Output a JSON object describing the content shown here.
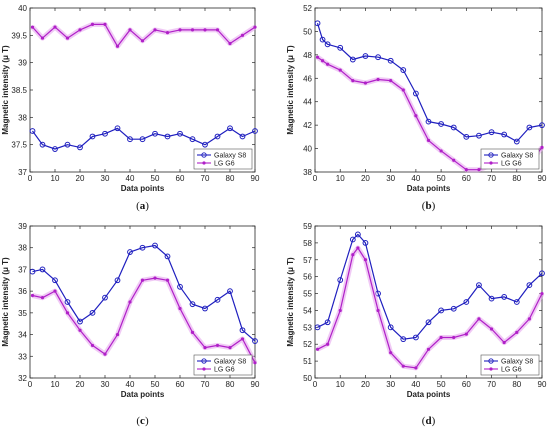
{
  "chart_data": [
    {
      "type": "line",
      "panel_label": "a",
      "xlabel": "Data points",
      "ylabel": "Magnetic intensity (μ T)",
      "xlim": [
        0,
        90
      ],
      "ylim": [
        37,
        40
      ],
      "xticks": [
        0,
        10,
        20,
        30,
        40,
        50,
        60,
        70,
        80,
        90
      ],
      "yticks": [
        37,
        37.5,
        38,
        38.5,
        39,
        39.5,
        40
      ],
      "ytick_labels": [
        "37",
        "37.5",
        "38",
        "38.5",
        "39",
        "39.5",
        "40"
      ],
      "legend": "bottom-right",
      "series": [
        {
          "name": "Galaxy S8",
          "color": "#1f1fbf",
          "marker": "circle",
          "x": [
            1,
            5,
            10,
            15,
            20,
            25,
            30,
            35,
            40,
            45,
            50,
            55,
            60,
            65,
            70,
            75,
            80,
            85,
            90
          ],
          "y": [
            37.75,
            37.5,
            37.42,
            37.5,
            37.45,
            37.65,
            37.7,
            37.8,
            37.6,
            37.6,
            37.7,
            37.65,
            37.7,
            37.6,
            37.5,
            37.65,
            37.8,
            37.65,
            37.75
          ]
        },
        {
          "name": "LG G6",
          "color": "#b020c8",
          "marker": "star",
          "x": [
            1,
            5,
            10,
            15,
            20,
            25,
            30,
            35,
            40,
            45,
            50,
            55,
            60,
            65,
            70,
            75,
            80,
            85,
            90
          ],
          "y": [
            39.65,
            39.45,
            39.65,
            39.45,
            39.6,
            39.7,
            39.7,
            39.3,
            39.6,
            39.4,
            39.6,
            39.55,
            39.6,
            39.6,
            39.6,
            39.6,
            39.35,
            39.5,
            39.65
          ]
        }
      ]
    },
    {
      "type": "line",
      "panel_label": "b",
      "xlabel": "Data points",
      "ylabel": "Magnetic intensity (μ T)",
      "xlim": [
        0,
        90
      ],
      "ylim": [
        38,
        52
      ],
      "xticks": [
        0,
        10,
        20,
        30,
        40,
        50,
        60,
        70,
        80,
        90
      ],
      "yticks": [
        38,
        40,
        42,
        44,
        46,
        48,
        50,
        52
      ],
      "ytick_labels": [
        "38",
        "40",
        "42",
        "44",
        "46",
        "48",
        "50",
        "52"
      ],
      "legend": "bottom-right",
      "series": [
        {
          "name": "Galaxy S8",
          "color": "#1f1fbf",
          "marker": "circle",
          "x": [
            1,
            3,
            5,
            10,
            15,
            20,
            25,
            30,
            35,
            40,
            45,
            50,
            55,
            60,
            65,
            70,
            75,
            80,
            85,
            90
          ],
          "y": [
            50.7,
            49.3,
            48.9,
            48.6,
            47.6,
            47.9,
            47.8,
            47.5,
            46.7,
            44.7,
            42.3,
            42.1,
            41.8,
            41.0,
            41.1,
            41.4,
            41.2,
            40.6,
            41.8,
            42.0
          ]
        },
        {
          "name": "LG G6",
          "color": "#b020c8",
          "marker": "star",
          "x": [
            1,
            3,
            5,
            10,
            15,
            20,
            25,
            30,
            35,
            40,
            45,
            50,
            55,
            60,
            65,
            70,
            75,
            80,
            85,
            90
          ],
          "y": [
            47.8,
            47.5,
            47.2,
            46.7,
            45.8,
            45.6,
            45.9,
            45.8,
            45.0,
            42.8,
            40.7,
            39.8,
            39.0,
            38.2,
            38.2,
            38.6,
            38.5,
            38.4,
            38.7,
            40.1
          ]
        }
      ]
    },
    {
      "type": "line",
      "panel_label": "c",
      "xlabel": "Data points",
      "ylabel": "Magnetic intensity (μ T)",
      "xlim": [
        0,
        90
      ],
      "ylim": [
        32,
        39
      ],
      "xticks": [
        0,
        10,
        20,
        30,
        40,
        50,
        60,
        70,
        80,
        90
      ],
      "yticks": [
        32,
        33,
        34,
        35,
        36,
        37,
        38,
        39
      ],
      "ytick_labels": [
        "32",
        "33",
        "34",
        "35",
        "36",
        "37",
        "38",
        "39"
      ],
      "legend": "bottom-right",
      "series": [
        {
          "name": "Galaxy S8",
          "color": "#1f1fbf",
          "marker": "circle",
          "x": [
            1,
            5,
            10,
            15,
            20,
            25,
            30,
            35,
            40,
            45,
            50,
            55,
            60,
            65,
            70,
            75,
            80,
            85,
            90
          ],
          "y": [
            36.9,
            37.0,
            36.5,
            35.5,
            34.6,
            35.0,
            35.7,
            36.5,
            37.8,
            38.0,
            38.1,
            37.6,
            36.2,
            35.4,
            35.2,
            35.6,
            36.0,
            34.2,
            33.7
          ]
        },
        {
          "name": "LG G6",
          "color": "#b020c8",
          "marker": "star",
          "x": [
            1,
            5,
            10,
            15,
            20,
            25,
            30,
            35,
            40,
            45,
            50,
            55,
            60,
            65,
            70,
            75,
            80,
            85,
            90
          ],
          "y": [
            35.8,
            35.7,
            36.0,
            35.0,
            34.2,
            33.5,
            33.1,
            34.0,
            35.5,
            36.5,
            36.6,
            36.5,
            35.2,
            34.1,
            33.4,
            33.5,
            33.4,
            33.8,
            32.7
          ]
        }
      ]
    },
    {
      "type": "line",
      "panel_label": "d",
      "xlabel": "Data points",
      "ylabel": "Magnetic intensity (μ T)",
      "xlim": [
        0,
        90
      ],
      "ylim": [
        50,
        59
      ],
      "xticks": [
        0,
        10,
        20,
        30,
        40,
        50,
        60,
        70,
        80,
        90
      ],
      "yticks": [
        50,
        51,
        52,
        53,
        54,
        55,
        56,
        57,
        58,
        59
      ],
      "ytick_labels": [
        "50",
        "51",
        "52",
        "53",
        "54",
        "55",
        "56",
        "57",
        "58",
        "59"
      ],
      "legend": "bottom-right",
      "series": [
        {
          "name": "Galaxy S8",
          "color": "#1f1fbf",
          "marker": "circle",
          "x": [
            1,
            5,
            10,
            15,
            17,
            20,
            25,
            30,
            35,
            40,
            45,
            50,
            55,
            60,
            65,
            70,
            75,
            80,
            85,
            90
          ],
          "y": [
            53.0,
            53.3,
            55.8,
            58.2,
            58.5,
            58.0,
            55.0,
            53.0,
            52.3,
            52.4,
            53.3,
            54.0,
            54.1,
            54.5,
            55.5,
            54.7,
            54.8,
            54.5,
            55.5,
            56.2
          ]
        },
        {
          "name": "LG G6",
          "color": "#b020c8",
          "marker": "star",
          "x": [
            1,
            5,
            10,
            15,
            17,
            20,
            25,
            30,
            35,
            40,
            45,
            50,
            55,
            60,
            65,
            70,
            75,
            80,
            85,
            90
          ],
          "y": [
            51.7,
            52.0,
            54.0,
            57.3,
            57.7,
            57.0,
            54.0,
            51.5,
            50.7,
            50.6,
            51.7,
            52.4,
            52.4,
            52.6,
            53.5,
            52.9,
            52.1,
            52.7,
            53.5,
            55.0
          ]
        }
      ]
    }
  ]
}
